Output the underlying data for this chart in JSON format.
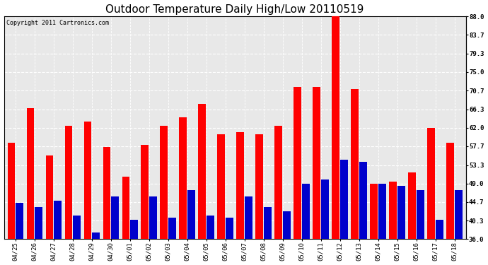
{
  "title": "Outdoor Temperature Daily High/Low 20110519",
  "copyright_text": "Copyright 2011 Cartronics.com",
  "dates": [
    "04/25",
    "04/26",
    "04/27",
    "04/28",
    "04/29",
    "04/30",
    "05/01",
    "05/02",
    "05/03",
    "05/04",
    "05/05",
    "05/06",
    "05/07",
    "05/08",
    "05/09",
    "05/10",
    "05/11",
    "05/12",
    "05/13",
    "05/14",
    "05/15",
    "05/16",
    "05/17",
    "05/18"
  ],
  "highs": [
    58.5,
    66.5,
    55.5,
    62.5,
    63.5,
    57.5,
    50.5,
    58.0,
    62.5,
    64.5,
    67.5,
    60.5,
    61.0,
    60.5,
    62.5,
    71.5,
    71.5,
    88.0,
    71.0,
    49.0,
    49.5,
    51.5,
    62.0,
    58.5
  ],
  "lows": [
    44.5,
    43.5,
    45.0,
    41.5,
    37.5,
    46.0,
    40.5,
    46.0,
    41.0,
    47.5,
    41.5,
    41.0,
    46.0,
    43.5,
    42.5,
    49.0,
    50.0,
    54.5,
    54.0,
    49.0,
    48.5,
    47.5,
    40.5,
    47.5
  ],
  "high_color": "#ff0000",
  "low_color": "#0000cc",
  "bg_color": "#ffffff",
  "plot_bg_color": "#ffffff",
  "grid_color": "#aaaaaa",
  "ylim": [
    36.0,
    88.0
  ],
  "yticks": [
    36.0,
    40.3,
    44.7,
    49.0,
    53.3,
    57.7,
    62.0,
    66.3,
    70.7,
    75.0,
    79.3,
    83.7,
    88.0
  ],
  "title_fontsize": 11,
  "tick_fontsize": 6.5,
  "copyright_fontsize": 6
}
